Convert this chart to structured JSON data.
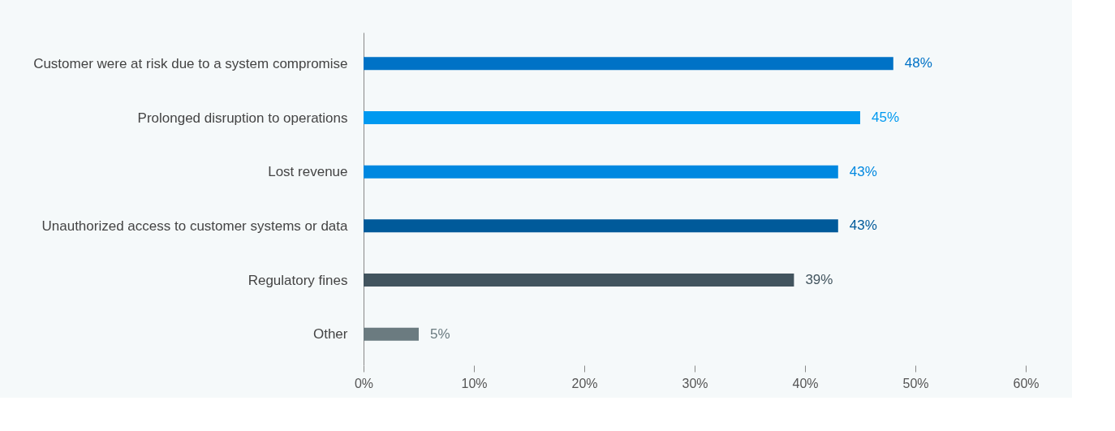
{
  "chart_data": {
    "type": "bar",
    "orientation": "horizontal",
    "categories": [
      "Customer were at risk due to a system compromise",
      "Prolonged disruption to operations",
      "Lost revenue",
      "Unauthorized access to customer systems or data",
      "Regulatory fines",
      "Other"
    ],
    "values": [
      48,
      45,
      43,
      43,
      39,
      5
    ],
    "colors": [
      "#0072c6",
      "#0099f0",
      "#0088e0",
      "#005a9a",
      "#42545e",
      "#6b7b80"
    ],
    "value_labels": [
      "48%",
      "45%",
      "43%",
      "43%",
      "39%",
      "5%"
    ],
    "xlim": [
      0,
      60
    ],
    "xticks": [
      {
        "value": 0,
        "label": "0%"
      },
      {
        "value": 10,
        "label": "10%"
      },
      {
        "value": 20,
        "label": "20%"
      },
      {
        "value": 30,
        "label": "30%"
      },
      {
        "value": 40,
        "label": "40%"
      },
      {
        "value": 50,
        "label": "50%"
      },
      {
        "value": 60,
        "label": "60%"
      }
    ],
    "grid": false
  }
}
